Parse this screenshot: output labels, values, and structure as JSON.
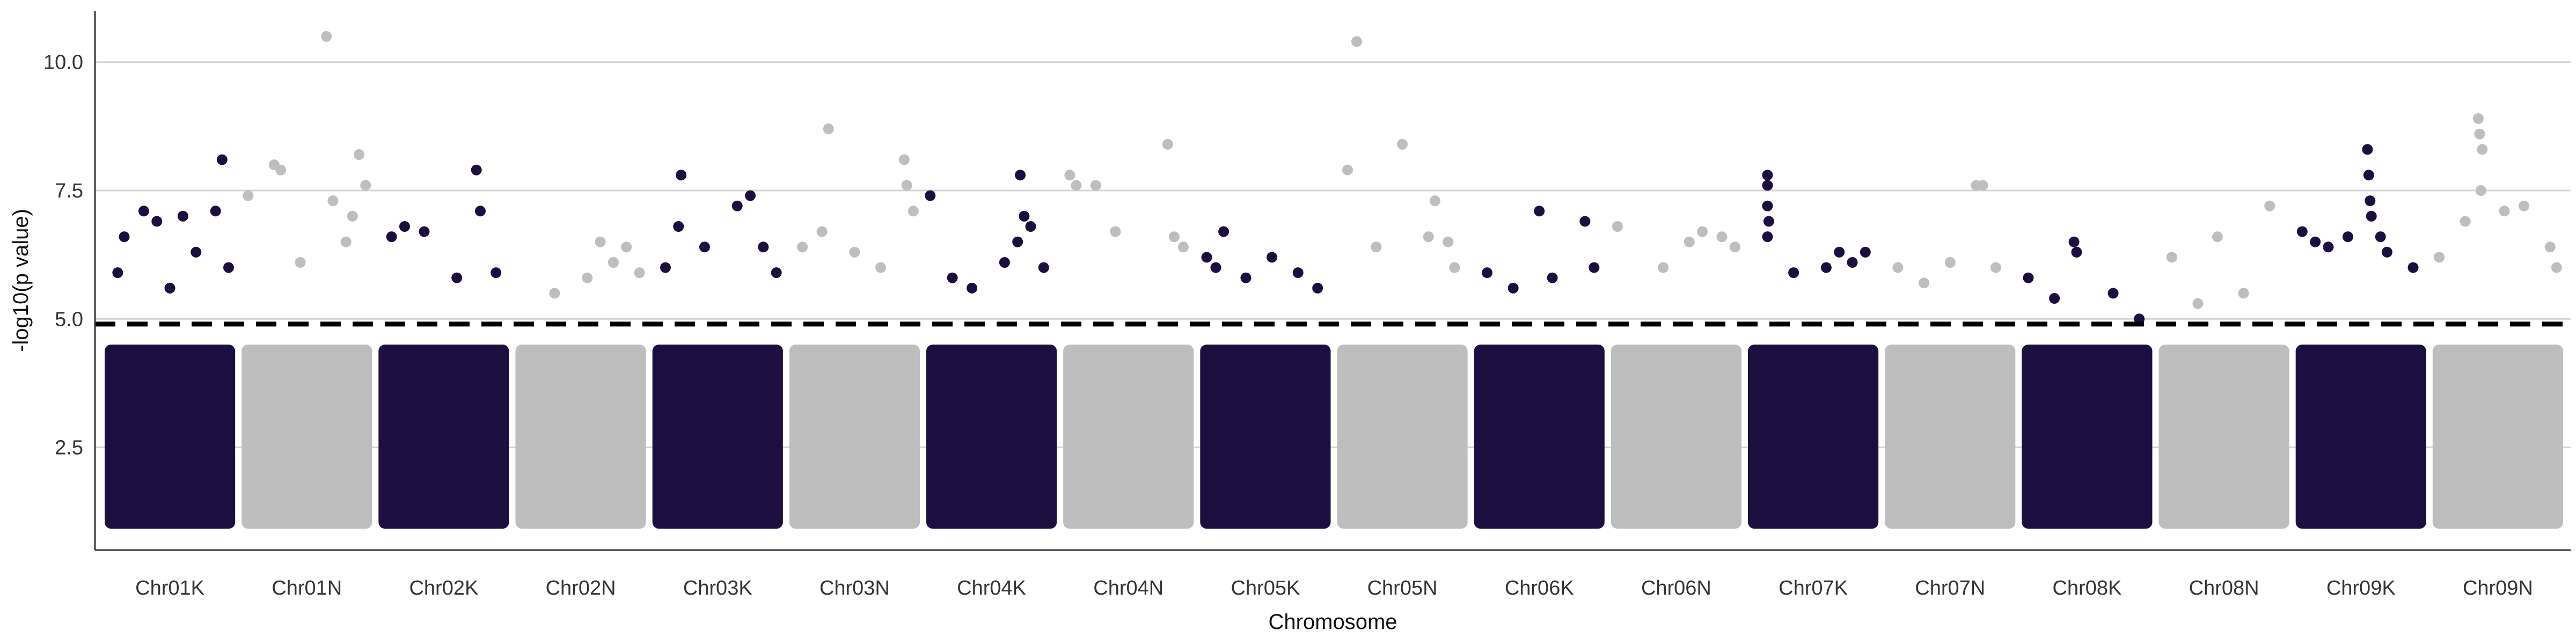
{
  "chart_data": {
    "type": "scatter",
    "subtype": "manhattan",
    "title": "",
    "xlabel": "Chromosome",
    "ylabel": "-log10(p value)",
    "ylim": [
      0.5,
      11
    ],
    "yticks": [
      2.5,
      5.0,
      7.5,
      10.0
    ],
    "ytick_labels": [
      "2.5",
      "5.0",
      "7.5",
      "10.0"
    ],
    "grid": "horizontal",
    "legend": "none",
    "threshold": 4.9,
    "categories": [
      "Chr01K",
      "Chr01N",
      "Chr02K",
      "Chr02N",
      "Chr03K",
      "Chr03N",
      "Chr04K",
      "Chr04N",
      "Chr05K",
      "Chr05N",
      "Chr06K",
      "Chr06N",
      "Chr07K",
      "Chr07N",
      "Chr08K",
      "Chr08N",
      "Chr09K",
      "Chr09N"
    ],
    "colors": {
      "odd": "#1c0f3f",
      "even": "#bebebe",
      "threshold": "#000000",
      "grid": "#d4d4d4"
    },
    "bulk_range": [
      1.0,
      4.5
    ],
    "points": [
      {
        "chr": "Chr01K",
        "pos": 0.1,
        "y": 5.9
      },
      {
        "chr": "Chr01K",
        "pos": 0.15,
        "y": 6.6
      },
      {
        "chr": "Chr01K",
        "pos": 0.3,
        "y": 7.1
      },
      {
        "chr": "Chr01K",
        "pos": 0.4,
        "y": 6.9
      },
      {
        "chr": "Chr01K",
        "pos": 0.6,
        "y": 7.0
      },
      {
        "chr": "Chr01K",
        "pos": 0.7,
        "y": 6.3
      },
      {
        "chr": "Chr01K",
        "pos": 0.85,
        "y": 7.1
      },
      {
        "chr": "Chr01K",
        "pos": 0.9,
        "y": 8.1
      },
      {
        "chr": "Chr01K",
        "pos": 0.95,
        "y": 6.0
      },
      {
        "chr": "Chr01K",
        "pos": 0.5,
        "y": 5.6
      },
      {
        "chr": "Chr01N",
        "pos": 0.05,
        "y": 7.4
      },
      {
        "chr": "Chr01N",
        "pos": 0.25,
        "y": 8.0
      },
      {
        "chr": "Chr01N",
        "pos": 0.3,
        "y": 7.9
      },
      {
        "chr": "Chr01N",
        "pos": 0.65,
        "y": 10.5
      },
      {
        "chr": "Chr01N",
        "pos": 0.7,
        "y": 7.3
      },
      {
        "chr": "Chr01N",
        "pos": 0.85,
        "y": 7.0
      },
      {
        "chr": "Chr01N",
        "pos": 0.9,
        "y": 8.2
      },
      {
        "chr": "Chr01N",
        "pos": 0.95,
        "y": 7.6
      },
      {
        "chr": "Chr01N",
        "pos": 0.45,
        "y": 6.1
      },
      {
        "chr": "Chr01N",
        "pos": 0.8,
        "y": 6.5
      },
      {
        "chr": "Chr02K",
        "pos": 0.1,
        "y": 6.6
      },
      {
        "chr": "Chr02K",
        "pos": 0.2,
        "y": 6.8
      },
      {
        "chr": "Chr02K",
        "pos": 0.35,
        "y": 6.7
      },
      {
        "chr": "Chr02K",
        "pos": 0.75,
        "y": 7.9
      },
      {
        "chr": "Chr02K",
        "pos": 0.78,
        "y": 7.1
      },
      {
        "chr": "Chr02K",
        "pos": 0.6,
        "y": 5.8
      },
      {
        "chr": "Chr02K",
        "pos": 0.9,
        "y": 5.9
      },
      {
        "chr": "Chr02N",
        "pos": 0.3,
        "y": 5.5
      },
      {
        "chr": "Chr02N",
        "pos": 0.55,
        "y": 5.8
      },
      {
        "chr": "Chr02N",
        "pos": 0.65,
        "y": 6.5
      },
      {
        "chr": "Chr02N",
        "pos": 0.75,
        "y": 6.1
      },
      {
        "chr": "Chr02N",
        "pos": 0.85,
        "y": 6.4
      },
      {
        "chr": "Chr02N",
        "pos": 0.95,
        "y": 5.9
      },
      {
        "chr": "Chr03K",
        "pos": 0.1,
        "y": 6.0
      },
      {
        "chr": "Chr03K",
        "pos": 0.2,
        "y": 6.8
      },
      {
        "chr": "Chr03K",
        "pos": 0.22,
        "y": 7.8
      },
      {
        "chr": "Chr03K",
        "pos": 0.4,
        "y": 6.4
      },
      {
        "chr": "Chr03K",
        "pos": 0.65,
        "y": 7.2
      },
      {
        "chr": "Chr03K",
        "pos": 0.75,
        "y": 7.4
      },
      {
        "chr": "Chr03K",
        "pos": 0.85,
        "y": 6.4
      },
      {
        "chr": "Chr03K",
        "pos": 0.95,
        "y": 5.9
      },
      {
        "chr": "Chr03N",
        "pos": 0.1,
        "y": 6.4
      },
      {
        "chr": "Chr03N",
        "pos": 0.25,
        "y": 6.7
      },
      {
        "chr": "Chr03N",
        "pos": 0.3,
        "y": 8.7
      },
      {
        "chr": "Chr03N",
        "pos": 0.5,
        "y": 6.3
      },
      {
        "chr": "Chr03N",
        "pos": 0.7,
        "y": 6.0
      },
      {
        "chr": "Chr03N",
        "pos": 0.88,
        "y": 8.1
      },
      {
        "chr": "Chr03N",
        "pos": 0.9,
        "y": 7.6
      },
      {
        "chr": "Chr03N",
        "pos": 0.95,
        "y": 7.1
      },
      {
        "chr": "Chr04K",
        "pos": 0.03,
        "y": 7.4
      },
      {
        "chr": "Chr04K",
        "pos": 0.2,
        "y": 5.8
      },
      {
        "chr": "Chr04K",
        "pos": 0.35,
        "y": 5.6
      },
      {
        "chr": "Chr04K",
        "pos": 0.6,
        "y": 6.1
      },
      {
        "chr": "Chr04K",
        "pos": 0.7,
        "y": 6.5
      },
      {
        "chr": "Chr04K",
        "pos": 0.72,
        "y": 7.8
      },
      {
        "chr": "Chr04K",
        "pos": 0.75,
        "y": 7.0
      },
      {
        "chr": "Chr04K",
        "pos": 0.8,
        "y": 6.8
      },
      {
        "chr": "Chr04K",
        "pos": 0.9,
        "y": 6.0
      },
      {
        "chr": "Chr04N",
        "pos": 0.05,
        "y": 7.8
      },
      {
        "chr": "Chr04N",
        "pos": 0.1,
        "y": 7.6
      },
      {
        "chr": "Chr04N",
        "pos": 0.25,
        "y": 7.6
      },
      {
        "chr": "Chr04N",
        "pos": 0.4,
        "y": 6.7
      },
      {
        "chr": "Chr04N",
        "pos": 0.8,
        "y": 8.4
      },
      {
        "chr": "Chr04N",
        "pos": 0.85,
        "y": 6.6
      },
      {
        "chr": "Chr04N",
        "pos": 0.92,
        "y": 6.4
      },
      {
        "chr": "Chr05K",
        "pos": 0.05,
        "y": 6.2
      },
      {
        "chr": "Chr05K",
        "pos": 0.12,
        "y": 6.0
      },
      {
        "chr": "Chr05K",
        "pos": 0.18,
        "y": 6.7
      },
      {
        "chr": "Chr05K",
        "pos": 0.35,
        "y": 5.8
      },
      {
        "chr": "Chr05K",
        "pos": 0.55,
        "y": 6.2
      },
      {
        "chr": "Chr05K",
        "pos": 0.75,
        "y": 5.9
      },
      {
        "chr": "Chr05K",
        "pos": 0.9,
        "y": 5.6
      },
      {
        "chr": "Chr05N",
        "pos": 0.08,
        "y": 7.9
      },
      {
        "chr": "Chr05N",
        "pos": 0.15,
        "y": 10.4
      },
      {
        "chr": "Chr05N",
        "pos": 0.3,
        "y": 6.4
      },
      {
        "chr": "Chr05N",
        "pos": 0.5,
        "y": 8.4
      },
      {
        "chr": "Chr05N",
        "pos": 0.7,
        "y": 6.6
      },
      {
        "chr": "Chr05N",
        "pos": 0.75,
        "y": 7.3
      },
      {
        "chr": "Chr05N",
        "pos": 0.85,
        "y": 6.5
      },
      {
        "chr": "Chr05N",
        "pos": 0.9,
        "y": 6.0
      },
      {
        "chr": "Chr06K",
        "pos": 0.1,
        "y": 5.9
      },
      {
        "chr": "Chr06K",
        "pos": 0.3,
        "y": 5.6
      },
      {
        "chr": "Chr06K",
        "pos": 0.5,
        "y": 7.1
      },
      {
        "chr": "Chr06K",
        "pos": 0.6,
        "y": 5.8
      },
      {
        "chr": "Chr06K",
        "pos": 0.85,
        "y": 6.9
      },
      {
        "chr": "Chr06K",
        "pos": 0.92,
        "y": 6.0
      },
      {
        "chr": "Chr06N",
        "pos": 0.05,
        "y": 6.8
      },
      {
        "chr": "Chr06N",
        "pos": 0.4,
        "y": 6.0
      },
      {
        "chr": "Chr06N",
        "pos": 0.6,
        "y": 6.5
      },
      {
        "chr": "Chr06N",
        "pos": 0.7,
        "y": 6.7
      },
      {
        "chr": "Chr06N",
        "pos": 0.85,
        "y": 6.6
      },
      {
        "chr": "Chr06N",
        "pos": 0.95,
        "y": 6.4
      },
      {
        "chr": "Chr07K",
        "pos": 0.15,
        "y": 7.8
      },
      {
        "chr": "Chr07K",
        "pos": 0.15,
        "y": 7.6
      },
      {
        "chr": "Chr07K",
        "pos": 0.15,
        "y": 7.2
      },
      {
        "chr": "Chr07K",
        "pos": 0.16,
        "y": 6.9
      },
      {
        "chr": "Chr07K",
        "pos": 0.15,
        "y": 6.6
      },
      {
        "chr": "Chr07K",
        "pos": 0.35,
        "y": 5.9
      },
      {
        "chr": "Chr07K",
        "pos": 0.6,
        "y": 6.0
      },
      {
        "chr": "Chr07K",
        "pos": 0.7,
        "y": 6.3
      },
      {
        "chr": "Chr07K",
        "pos": 0.8,
        "y": 6.1
      },
      {
        "chr": "Chr07K",
        "pos": 0.9,
        "y": 6.3
      },
      {
        "chr": "Chr07N",
        "pos": 0.1,
        "y": 6.0
      },
      {
        "chr": "Chr07N",
        "pos": 0.3,
        "y": 5.7
      },
      {
        "chr": "Chr07N",
        "pos": 0.5,
        "y": 6.1
      },
      {
        "chr": "Chr07N",
        "pos": 0.7,
        "y": 7.6
      },
      {
        "chr": "Chr07N",
        "pos": 0.75,
        "y": 7.6
      },
      {
        "chr": "Chr07N",
        "pos": 0.85,
        "y": 6.0
      },
      {
        "chr": "Chr08K",
        "pos": 0.05,
        "y": 5.8
      },
      {
        "chr": "Chr08K",
        "pos": 0.25,
        "y": 5.4
      },
      {
        "chr": "Chr08K",
        "pos": 0.4,
        "y": 6.5
      },
      {
        "chr": "Chr08K",
        "pos": 0.42,
        "y": 6.3
      },
      {
        "chr": "Chr08K",
        "pos": 0.7,
        "y": 5.5
      },
      {
        "chr": "Chr08K",
        "pos": 0.9,
        "y": 5.0
      },
      {
        "chr": "Chr08N",
        "pos": 0.1,
        "y": 6.2
      },
      {
        "chr": "Chr08N",
        "pos": 0.3,
        "y": 5.3
      },
      {
        "chr": "Chr08N",
        "pos": 0.45,
        "y": 6.6
      },
      {
        "chr": "Chr08N",
        "pos": 0.65,
        "y": 5.5
      },
      {
        "chr": "Chr08N",
        "pos": 0.85,
        "y": 7.2
      },
      {
        "chr": "Chr09K",
        "pos": 0.05,
        "y": 6.7
      },
      {
        "chr": "Chr09K",
        "pos": 0.15,
        "y": 6.5
      },
      {
        "chr": "Chr09K",
        "pos": 0.25,
        "y": 6.4
      },
      {
        "chr": "Chr09K",
        "pos": 0.4,
        "y": 6.6
      },
      {
        "chr": "Chr09K",
        "pos": 0.55,
        "y": 8.3
      },
      {
        "chr": "Chr09K",
        "pos": 0.56,
        "y": 7.8
      },
      {
        "chr": "Chr09K",
        "pos": 0.57,
        "y": 7.3
      },
      {
        "chr": "Chr09K",
        "pos": 0.58,
        "y": 7.0
      },
      {
        "chr": "Chr09K",
        "pos": 0.65,
        "y": 6.6
      },
      {
        "chr": "Chr09K",
        "pos": 0.7,
        "y": 6.3
      },
      {
        "chr": "Chr09K",
        "pos": 0.9,
        "y": 6.0
      },
      {
        "chr": "Chr09N",
        "pos": 0.05,
        "y": 6.2
      },
      {
        "chr": "Chr09N",
        "pos": 0.25,
        "y": 6.9
      },
      {
        "chr": "Chr09N",
        "pos": 0.35,
        "y": 8.9
      },
      {
        "chr": "Chr09N",
        "pos": 0.36,
        "y": 8.6
      },
      {
        "chr": "Chr09N",
        "pos": 0.38,
        "y": 8.3
      },
      {
        "chr": "Chr09N",
        "pos": 0.37,
        "y": 7.5
      },
      {
        "chr": "Chr09N",
        "pos": 0.55,
        "y": 7.1
      },
      {
        "chr": "Chr09N",
        "pos": 0.7,
        "y": 7.2
      },
      {
        "chr": "Chr09N",
        "pos": 0.9,
        "y": 6.4
      },
      {
        "chr": "Chr09N",
        "pos": 0.95,
        "y": 6.0
      }
    ]
  }
}
